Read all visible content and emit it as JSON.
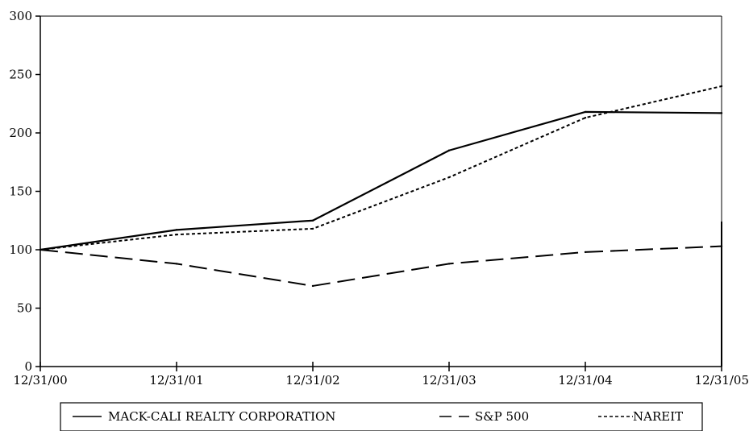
{
  "chart_data": {
    "type": "line",
    "categories": [
      "12/31/00",
      "12/31/01",
      "12/31/02",
      "12/31/03",
      "12/31/04",
      "12/31/05"
    ],
    "y_ticks": [
      "0",
      "50",
      "100",
      "150",
      "200",
      "250",
      "300"
    ],
    "ylim": [
      0,
      300
    ],
    "grid": false,
    "legend_position": "bottom",
    "series": [
      {
        "name": "MACK-CALI REALTY CORPORATION",
        "style": "solid",
        "values": [
          100,
          117,
          125,
          185,
          218,
          217
        ]
      },
      {
        "name": "S&P 500",
        "style": "dashed",
        "values": [
          100,
          88,
          69,
          88,
          98,
          103
        ]
      },
      {
        "name": "NAREIT",
        "style": "dotted",
        "values": [
          100,
          113,
          118,
          162,
          213,
          240
        ]
      }
    ],
    "colors": {
      "line": "#000000",
      "background": "#ffffff"
    }
  }
}
